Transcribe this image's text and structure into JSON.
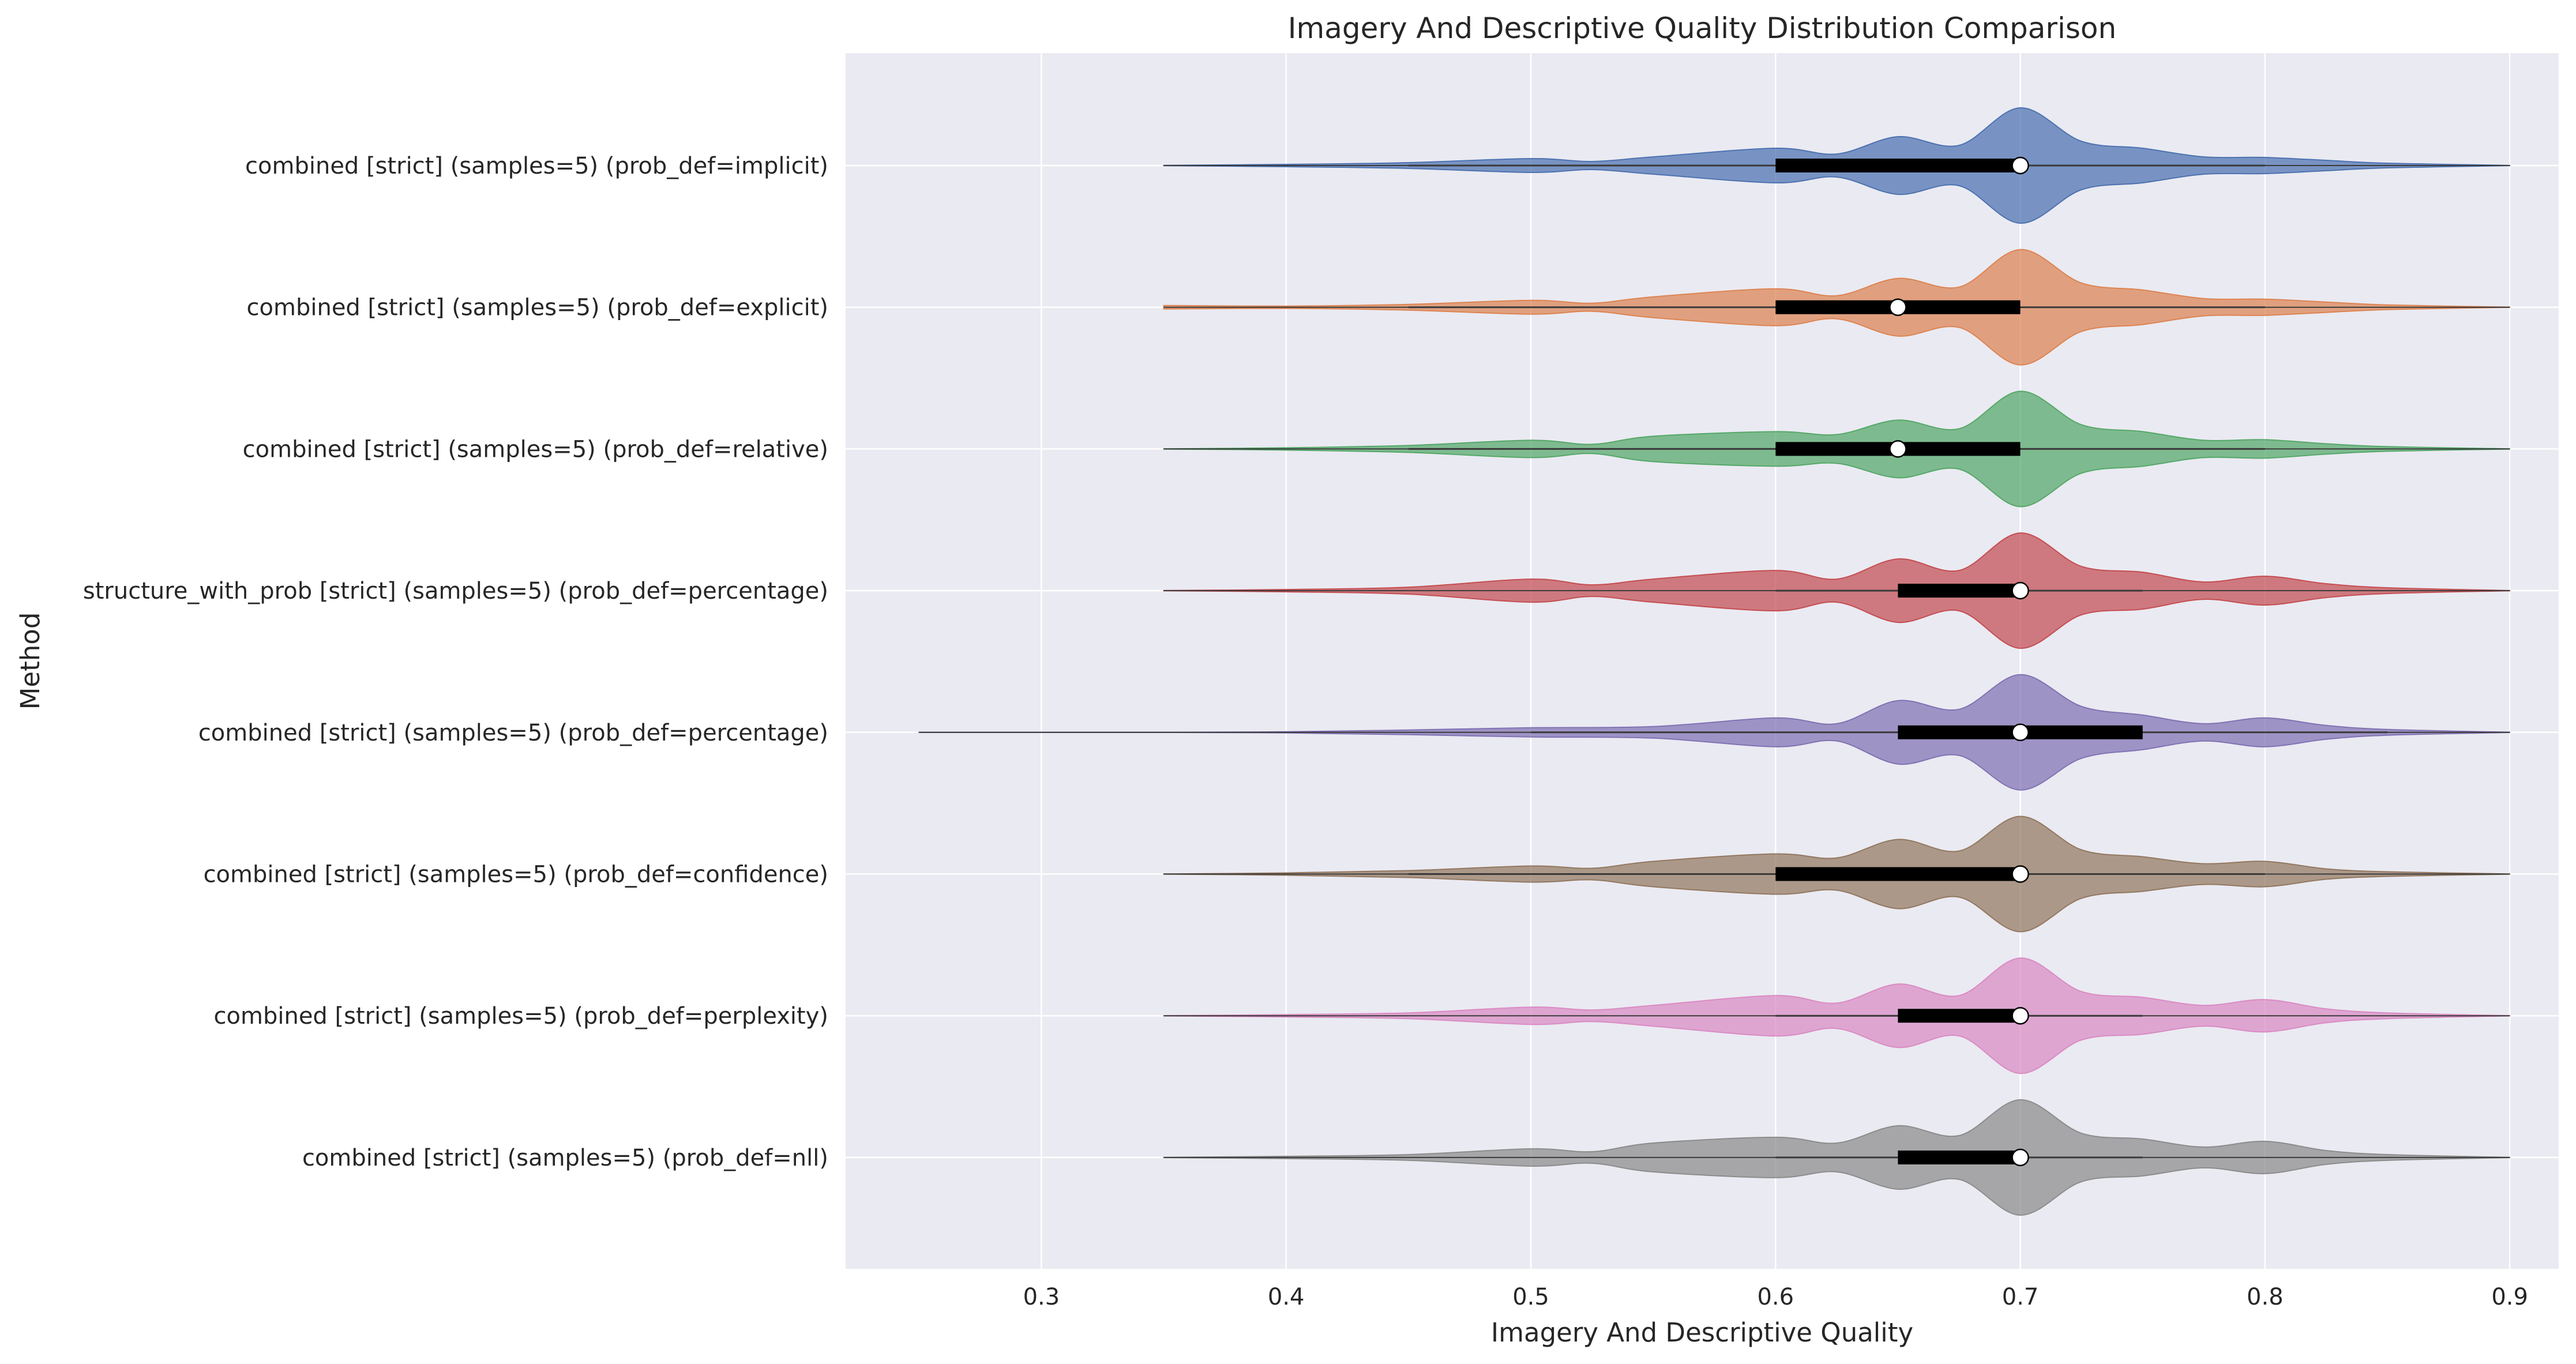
{
  "chart_data": {
    "type": "violin",
    "orientation": "horizontal",
    "title": "Imagery And Descriptive Quality Distribution Comparison",
    "xlabel": "Imagery And Descriptive Quality",
    "ylabel": "Method",
    "xlim": [
      0.22,
      0.92
    ],
    "xticks": [
      0.3,
      0.4,
      0.5,
      0.6,
      0.7,
      0.8,
      0.9
    ],
    "xtick_labels": [
      "0.3",
      "0.4",
      "0.5",
      "0.6",
      "0.7",
      "0.8",
      "0.9"
    ],
    "grid": true,
    "background": "#eaeaf2",
    "series": [
      {
        "name": "combined [strict] (samples=5) (prob_def=implicit)",
        "color": "#4c72b0",
        "min": 0.35,
        "q1": 0.6,
        "median": 0.7,
        "q3": 0.7,
        "max": 0.9,
        "whisker_low": 0.45,
        "whisker_high": 0.8,
        "density": [
          [
            0.35,
            0.002
          ],
          [
            0.4,
            0.02
          ],
          [
            0.45,
            0.05
          ],
          [
            0.5,
            0.12
          ],
          [
            0.525,
            0.07
          ],
          [
            0.55,
            0.15
          ],
          [
            0.6,
            0.3
          ],
          [
            0.625,
            0.2
          ],
          [
            0.65,
            0.5
          ],
          [
            0.675,
            0.35
          ],
          [
            0.7,
            1.0
          ],
          [
            0.725,
            0.42
          ],
          [
            0.75,
            0.3
          ],
          [
            0.775,
            0.15
          ],
          [
            0.8,
            0.14
          ],
          [
            0.825,
            0.09
          ],
          [
            0.85,
            0.04
          ],
          [
            0.9,
            0.002
          ]
        ]
      },
      {
        "name": "combined [strict] (samples=5) (prob_def=explicit)",
        "color": "#dd8452",
        "min": 0.35,
        "q1": 0.6,
        "median": 0.65,
        "q3": 0.7,
        "max": 0.9,
        "whisker_low": 0.45,
        "whisker_high": 0.8,
        "density": [
          [
            0.35,
            0.03
          ],
          [
            0.4,
            0.02
          ],
          [
            0.45,
            0.05
          ],
          [
            0.5,
            0.12
          ],
          [
            0.525,
            0.07
          ],
          [
            0.55,
            0.18
          ],
          [
            0.6,
            0.32
          ],
          [
            0.625,
            0.2
          ],
          [
            0.65,
            0.5
          ],
          [
            0.675,
            0.35
          ],
          [
            0.7,
            1.0
          ],
          [
            0.725,
            0.42
          ],
          [
            0.75,
            0.3
          ],
          [
            0.775,
            0.15
          ],
          [
            0.8,
            0.14
          ],
          [
            0.825,
            0.09
          ],
          [
            0.85,
            0.04
          ],
          [
            0.9,
            0.002
          ]
        ]
      },
      {
        "name": "combined [strict] (samples=5) (prob_def=relative)",
        "color": "#55a868",
        "min": 0.35,
        "q1": 0.6,
        "median": 0.65,
        "q3": 0.7,
        "max": 0.9,
        "whisker_low": 0.45,
        "whisker_high": 0.8,
        "density": [
          [
            0.35,
            0.002
          ],
          [
            0.4,
            0.02
          ],
          [
            0.45,
            0.06
          ],
          [
            0.5,
            0.15
          ],
          [
            0.525,
            0.08
          ],
          [
            0.55,
            0.22
          ],
          [
            0.6,
            0.3
          ],
          [
            0.625,
            0.25
          ],
          [
            0.65,
            0.5
          ],
          [
            0.675,
            0.35
          ],
          [
            0.7,
            1.0
          ],
          [
            0.725,
            0.42
          ],
          [
            0.75,
            0.3
          ],
          [
            0.775,
            0.15
          ],
          [
            0.8,
            0.16
          ],
          [
            0.825,
            0.09
          ],
          [
            0.85,
            0.04
          ],
          [
            0.9,
            0.002
          ]
        ]
      },
      {
        "name": "structure_with_prob [strict] (samples=5) (prob_def=percentage)",
        "color": "#c44e52",
        "min": 0.35,
        "q1": 0.65,
        "median": 0.7,
        "q3": 0.7,
        "max": 0.9,
        "whisker_low": 0.6,
        "whisker_high": 0.75,
        "density": [
          [
            0.35,
            0.002
          ],
          [
            0.4,
            0.02
          ],
          [
            0.45,
            0.06
          ],
          [
            0.5,
            0.2
          ],
          [
            0.525,
            0.1
          ],
          [
            0.55,
            0.2
          ],
          [
            0.6,
            0.35
          ],
          [
            0.625,
            0.2
          ],
          [
            0.65,
            0.55
          ],
          [
            0.675,
            0.35
          ],
          [
            0.7,
            1.0
          ],
          [
            0.725,
            0.42
          ],
          [
            0.75,
            0.32
          ],
          [
            0.775,
            0.15
          ],
          [
            0.8,
            0.25
          ],
          [
            0.825,
            0.12
          ],
          [
            0.85,
            0.05
          ],
          [
            0.9,
            0.002
          ]
        ]
      },
      {
        "name": "combined [strict] (samples=5) (prob_def=percentage)",
        "color": "#8172b3",
        "min": 0.25,
        "q1": 0.65,
        "median": 0.7,
        "q3": 0.75,
        "max": 0.9,
        "whisker_low": 0.5,
        "whisker_high": 0.85,
        "density": [
          [
            0.25,
            0.002
          ],
          [
            0.35,
            0.002
          ],
          [
            0.4,
            0.01
          ],
          [
            0.45,
            0.04
          ],
          [
            0.5,
            0.08
          ],
          [
            0.55,
            0.1
          ],
          [
            0.6,
            0.25
          ],
          [
            0.625,
            0.15
          ],
          [
            0.65,
            0.55
          ],
          [
            0.675,
            0.4
          ],
          [
            0.7,
            1.0
          ],
          [
            0.725,
            0.45
          ],
          [
            0.75,
            0.3
          ],
          [
            0.775,
            0.15
          ],
          [
            0.8,
            0.25
          ],
          [
            0.825,
            0.12
          ],
          [
            0.85,
            0.05
          ],
          [
            0.9,
            0.002
          ]
        ]
      },
      {
        "name": "combined [strict] (samples=5) (prob_def=confidence)",
        "color": "#937860",
        "min": 0.35,
        "q1": 0.6,
        "median": 0.7,
        "q3": 0.7,
        "max": 0.9,
        "whisker_low": 0.45,
        "whisker_high": 0.8,
        "density": [
          [
            0.35,
            0.002
          ],
          [
            0.4,
            0.02
          ],
          [
            0.45,
            0.06
          ],
          [
            0.5,
            0.14
          ],
          [
            0.525,
            0.1
          ],
          [
            0.55,
            0.22
          ],
          [
            0.6,
            0.35
          ],
          [
            0.625,
            0.28
          ],
          [
            0.65,
            0.6
          ],
          [
            0.675,
            0.4
          ],
          [
            0.7,
            1.0
          ],
          [
            0.725,
            0.42
          ],
          [
            0.75,
            0.3
          ],
          [
            0.775,
            0.18
          ],
          [
            0.8,
            0.22
          ],
          [
            0.825,
            0.09
          ],
          [
            0.85,
            0.04
          ],
          [
            0.9,
            0.002
          ]
        ]
      },
      {
        "name": "combined [strict] (samples=5) (prob_def=perplexity)",
        "color": "#da8bc3",
        "min": 0.35,
        "q1": 0.65,
        "median": 0.7,
        "q3": 0.7,
        "max": 0.9,
        "whisker_low": 0.6,
        "whisker_high": 0.75,
        "density": [
          [
            0.35,
            0.002
          ],
          [
            0.4,
            0.02
          ],
          [
            0.45,
            0.05
          ],
          [
            0.5,
            0.15
          ],
          [
            0.525,
            0.1
          ],
          [
            0.55,
            0.18
          ],
          [
            0.6,
            0.35
          ],
          [
            0.625,
            0.22
          ],
          [
            0.65,
            0.55
          ],
          [
            0.675,
            0.35
          ],
          [
            0.7,
            1.0
          ],
          [
            0.725,
            0.42
          ],
          [
            0.75,
            0.32
          ],
          [
            0.775,
            0.18
          ],
          [
            0.8,
            0.28
          ],
          [
            0.825,
            0.12
          ],
          [
            0.85,
            0.05
          ],
          [
            0.9,
            0.002
          ]
        ]
      },
      {
        "name": "combined [strict] (samples=5) (prob_def=nll)",
        "color": "#8c8c8c",
        "min": 0.35,
        "q1": 0.65,
        "median": 0.7,
        "q3": 0.7,
        "max": 0.9,
        "whisker_low": 0.6,
        "whisker_high": 0.75,
        "density": [
          [
            0.35,
            0.002
          ],
          [
            0.4,
            0.02
          ],
          [
            0.45,
            0.05
          ],
          [
            0.5,
            0.15
          ],
          [
            0.525,
            0.1
          ],
          [
            0.55,
            0.25
          ],
          [
            0.6,
            0.35
          ],
          [
            0.625,
            0.25
          ],
          [
            0.65,
            0.55
          ],
          [
            0.675,
            0.38
          ],
          [
            0.7,
            1.0
          ],
          [
            0.725,
            0.42
          ],
          [
            0.75,
            0.32
          ],
          [
            0.775,
            0.18
          ],
          [
            0.8,
            0.28
          ],
          [
            0.825,
            0.12
          ],
          [
            0.85,
            0.05
          ],
          [
            0.9,
            0.002
          ]
        ]
      }
    ]
  }
}
